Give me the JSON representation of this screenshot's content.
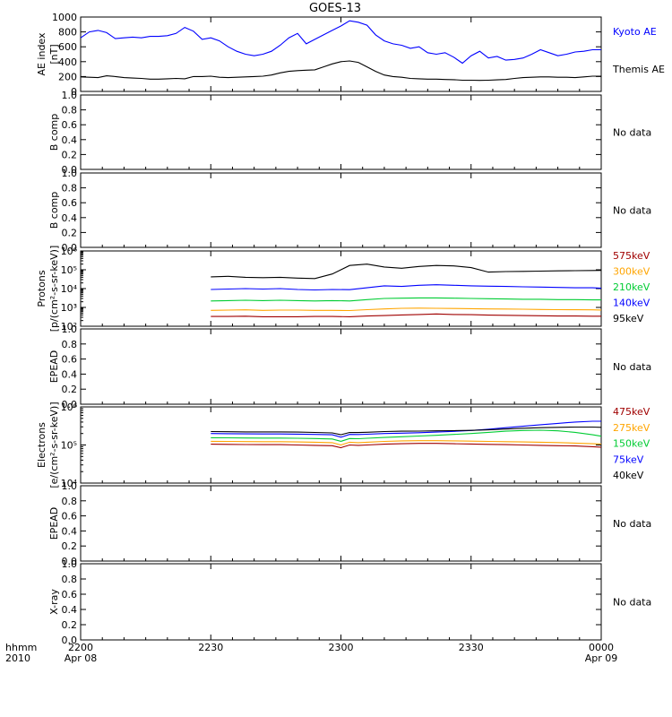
{
  "title": "GOES-13",
  "colors": {
    "black": "#000000",
    "blue": "#0000ff",
    "red": "#a00000",
    "orange": "#ffa500",
    "green": "#00cc33"
  },
  "xaxis": {
    "ticks": [
      {
        "top": "2200",
        "bottom": "Apr 08",
        "min": 0
      },
      {
        "top": "2230",
        "bottom": "",
        "min": 30
      },
      {
        "top": "2300",
        "bottom": "",
        "min": 60
      },
      {
        "top": "2330",
        "bottom": "",
        "min": 90
      },
      {
        "top": "0000",
        "bottom": "Apr 09",
        "min": 120
      }
    ],
    "left_labels": [
      "hhmm",
      "2010"
    ],
    "range_min": [
      0,
      120
    ]
  },
  "chart_data": [
    {
      "type": "line",
      "panel": "ae",
      "ylabel": [
        "AE index",
        "[nT]"
      ],
      "ylim": [
        0,
        1000
      ],
      "yticks": [
        0,
        200,
        400,
        600,
        800,
        1000
      ],
      "series": [
        {
          "name": "Kyoto AE",
          "color": "#0000ff",
          "x": [
            0,
            2,
            4,
            6,
            8,
            10,
            12,
            14,
            16,
            18,
            20,
            22,
            24,
            26,
            28,
            30,
            32,
            34,
            36,
            38,
            40,
            42,
            44,
            46,
            48,
            50,
            52,
            54,
            56,
            58,
            60,
            62,
            64,
            66,
            68,
            70,
            72,
            74,
            76,
            78,
            80,
            82,
            84,
            86,
            88,
            90,
            92,
            94,
            96,
            98,
            100,
            102,
            104,
            106,
            108,
            110,
            112,
            114,
            116,
            118,
            120
          ],
          "y": [
            720,
            800,
            820,
            790,
            710,
            720,
            730,
            720,
            740,
            740,
            750,
            780,
            860,
            810,
            700,
            720,
            680,
            600,
            540,
            500,
            480,
            500,
            540,
            620,
            720,
            780,
            640,
            700,
            760,
            820,
            880,
            950,
            930,
            890,
            760,
            680,
            640,
            620,
            580,
            600,
            520,
            500,
            520,
            460,
            380,
            480,
            540,
            450,
            470,
            420,
            430,
            450,
            500,
            560,
            520,
            480,
            500,
            530,
            540,
            560,
            560
          ]
        },
        {
          "name": "Themis AE",
          "color": "#000000",
          "x": [
            0,
            2,
            4,
            6,
            8,
            10,
            12,
            14,
            16,
            18,
            20,
            22,
            24,
            26,
            28,
            30,
            32,
            34,
            36,
            38,
            40,
            42,
            44,
            46,
            48,
            50,
            52,
            54,
            56,
            58,
            60,
            62,
            64,
            66,
            68,
            70,
            72,
            74,
            76,
            78,
            80,
            82,
            84,
            86,
            88,
            90,
            92,
            94,
            96,
            98,
            100,
            102,
            104,
            106,
            108,
            110,
            112,
            114,
            116,
            118,
            120
          ],
          "y": [
            195,
            190,
            185,
            210,
            200,
            185,
            180,
            175,
            165,
            165,
            170,
            175,
            170,
            200,
            200,
            205,
            190,
            185,
            190,
            195,
            200,
            205,
            220,
            250,
            270,
            280,
            285,
            290,
            330,
            370,
            400,
            410,
            390,
            330,
            270,
            220,
            200,
            190,
            175,
            170,
            165,
            165,
            160,
            158,
            150,
            150,
            148,
            150,
            155,
            160,
            175,
            185,
            190,
            195,
            195,
            190,
            190,
            185,
            195,
            205,
            205
          ]
        }
      ]
    },
    {
      "type": "line",
      "panel": "b1",
      "ylabel": [
        "B comp"
      ],
      "ylim": [
        0,
        1
      ],
      "yticks": [
        0.0,
        0.2,
        0.4,
        0.6,
        0.8,
        1.0
      ],
      "series": [],
      "note": "No data"
    },
    {
      "type": "line",
      "panel": "b2",
      "ylabel": [
        "B comp"
      ],
      "ylim": [
        0,
        1
      ],
      "yticks": [
        0.0,
        0.2,
        0.4,
        0.6,
        0.8,
        1.0
      ],
      "series": [],
      "note": "No data"
    },
    {
      "type": "line",
      "panel": "protons",
      "ylabel": [
        "Protons",
        "[p/(cm²-s-sr-keV)]"
      ],
      "ylog": true,
      "ylim": [
        100,
        1000000
      ],
      "yticks": [
        100,
        1000,
        10000,
        100000,
        1000000
      ],
      "ytick_labels": [
        "10²",
        "10³",
        "10⁴",
        "10⁵",
        "10⁶"
      ],
      "series": [
        {
          "name": "575keV",
          "color": "#a00000",
          "x": [
            30,
            34,
            38,
            42,
            46,
            50,
            54,
            58,
            62,
            66,
            70,
            74,
            78,
            82,
            86,
            90,
            94,
            98,
            102,
            106,
            110,
            114,
            118,
            120
          ],
          "y": [
            330,
            330,
            340,
            320,
            320,
            320,
            330,
            330,
            320,
            350,
            370,
            400,
            420,
            450,
            420,
            410,
            390,
            380,
            370,
            360,
            350,
            350,
            340,
            340
          ]
        },
        {
          "name": "300keV",
          "color": "#ffa500",
          "x": [
            30,
            34,
            38,
            42,
            46,
            50,
            54,
            58,
            62,
            66,
            70,
            74,
            78,
            82,
            86,
            90,
            94,
            98,
            102,
            106,
            110,
            114,
            118,
            120
          ],
          "y": [
            700,
            720,
            740,
            700,
            720,
            720,
            700,
            700,
            680,
            760,
            830,
            900,
            920,
            900,
            880,
            860,
            830,
            820,
            800,
            780,
            760,
            750,
            740,
            730
          ]
        },
        {
          "name": "210keV",
          "color": "#00cc33",
          "x": [
            30,
            34,
            38,
            42,
            46,
            50,
            54,
            58,
            62,
            66,
            70,
            74,
            78,
            82,
            86,
            90,
            94,
            98,
            102,
            106,
            110,
            114,
            118,
            120
          ],
          "y": [
            2200,
            2300,
            2400,
            2300,
            2400,
            2300,
            2200,
            2300,
            2200,
            2600,
            3000,
            3100,
            3200,
            3200,
            3100,
            3000,
            2900,
            2800,
            2700,
            2700,
            2600,
            2600,
            2500,
            2500
          ]
        },
        {
          "name": "140keV",
          "color": "#0000ff",
          "x": [
            30,
            34,
            38,
            42,
            46,
            50,
            54,
            58,
            62,
            66,
            70,
            74,
            78,
            82,
            86,
            90,
            94,
            98,
            102,
            106,
            110,
            114,
            118,
            120
          ],
          "y": [
            9000,
            9500,
            10000,
            9500,
            10000,
            9000,
            8500,
            9000,
            8800,
            11000,
            14000,
            13000,
            15000,
            16000,
            15000,
            14000,
            13500,
            13000,
            12500,
            12000,
            11500,
            11000,
            11000,
            10500
          ]
        },
        {
          "name": "95keV",
          "color": "#000000",
          "x": [
            30,
            34,
            38,
            42,
            46,
            50,
            54,
            58,
            62,
            66,
            70,
            74,
            78,
            82,
            86,
            90,
            94,
            98,
            102,
            106,
            110,
            114,
            118,
            120
          ],
          "y": [
            42000,
            45000,
            40000,
            38000,
            40000,
            36000,
            34000,
            60000,
            170000,
            200000,
            140000,
            120000,
            150000,
            170000,
            160000,
            130000,
            75000,
            80000,
            82000,
            85000,
            88000,
            90000,
            92000,
            93000
          ]
        }
      ]
    },
    {
      "type": "line",
      "panel": "epead1",
      "ylabel": [
        "EPEAD"
      ],
      "ylim": [
        0,
        1
      ],
      "yticks": [
        0.0,
        0.2,
        0.4,
        0.6,
        0.8,
        1.0
      ],
      "series": [],
      "note": "No data"
    },
    {
      "type": "line",
      "panel": "electrons",
      "ylabel": [
        "Electrons",
        "[e/(cm²-s-sr-keV)]"
      ],
      "ylog": true,
      "ylim": [
        10000,
        1000000
      ],
      "yticks": [
        10000,
        100000,
        1000000
      ],
      "ytick_labels": [
        "10⁴",
        "10⁵",
        "10⁶"
      ],
      "series": [
        {
          "name": "475keV",
          "color": "#a00000",
          "x": [
            30,
            34,
            38,
            42,
            46,
            50,
            54,
            58,
            60,
            62,
            64,
            66,
            70,
            74,
            78,
            82,
            86,
            90,
            94,
            98,
            102,
            106,
            110,
            114,
            118,
            120
          ],
          "y": [
            105000,
            104000,
            103000,
            102000,
            102000,
            100000,
            98000,
            96000,
            85000,
            100000,
            98000,
            100000,
            105000,
            108000,
            110000,
            110000,
            108000,
            106000,
            104000,
            102000,
            100000,
            98000,
            96000,
            94000,
            90000,
            88000
          ]
        },
        {
          "name": "275keV",
          "color": "#ffa500",
          "x": [
            30,
            34,
            38,
            42,
            46,
            50,
            54,
            58,
            60,
            62,
            64,
            66,
            70,
            74,
            78,
            82,
            86,
            90,
            94,
            98,
            102,
            106,
            110,
            114,
            118,
            120
          ],
          "y": [
            125000,
            124000,
            123000,
            122000,
            122000,
            120000,
            118000,
            115000,
            100000,
            118000,
            115000,
            118000,
            124000,
            128000,
            130000,
            130000,
            128000,
            126000,
            124000,
            122000,
            120000,
            118000,
            116000,
            112000,
            108000,
            106000
          ]
        },
        {
          "name": "150keV",
          "color": "#00cc33",
          "x": [
            30,
            34,
            38,
            42,
            46,
            50,
            54,
            58,
            60,
            62,
            64,
            66,
            70,
            74,
            78,
            82,
            86,
            90,
            94,
            98,
            102,
            106,
            110,
            114,
            118,
            120
          ],
          "y": [
            155000,
            154000,
            153000,
            152000,
            152000,
            150000,
            148000,
            144000,
            125000,
            148000,
            146000,
            150000,
            158000,
            165000,
            172000,
            180000,
            190000,
            200000,
            215000,
            230000,
            240000,
            245000,
            235000,
            215000,
            185000,
            170000
          ]
        },
        {
          "name": "75keV",
          "color": "#0000ff",
          "x": [
            30,
            34,
            38,
            42,
            46,
            50,
            54,
            58,
            60,
            62,
            64,
            66,
            70,
            74,
            78,
            82,
            86,
            90,
            94,
            98,
            102,
            106,
            110,
            114,
            118,
            120
          ],
          "y": [
            200000,
            198000,
            196000,
            195000,
            195000,
            193000,
            190000,
            185000,
            160000,
            190000,
            188000,
            192000,
            200000,
            205000,
            210000,
            218000,
            228000,
            240000,
            260000,
            285000,
            310000,
            340000,
            370000,
            400000,
            420000,
            420000
          ]
        },
        {
          "name": "40keV",
          "color": "#000000",
          "x": [
            30,
            34,
            38,
            42,
            46,
            50,
            54,
            58,
            60,
            62,
            64,
            66,
            70,
            74,
            78,
            82,
            86,
            90,
            94,
            98,
            102,
            106,
            110,
            114,
            118,
            120
          ],
          "y": [
            225000,
            223000,
            221000,
            220000,
            220000,
            218000,
            214000,
            208000,
            185000,
            214000,
            212000,
            216000,
            225000,
            230000,
            232000,
            235000,
            238000,
            242000,
            250000,
            262000,
            275000,
            285000,
            290000,
            295000,
            295000,
            290000
          ]
        }
      ]
    },
    {
      "type": "line",
      "panel": "epead2",
      "ylabel": [
        "EPEAD"
      ],
      "ylim": [
        0,
        1
      ],
      "yticks": [
        0.0,
        0.2,
        0.4,
        0.6,
        0.8,
        1.0
      ],
      "series": [],
      "note": "No data"
    },
    {
      "type": "line",
      "panel": "xray",
      "ylabel": [
        "X-ray"
      ],
      "ylim": [
        0,
        1
      ],
      "yticks": [
        0.0,
        0.2,
        0.4,
        0.6,
        0.8,
        1.0
      ],
      "series": [],
      "note": "No data"
    }
  ]
}
